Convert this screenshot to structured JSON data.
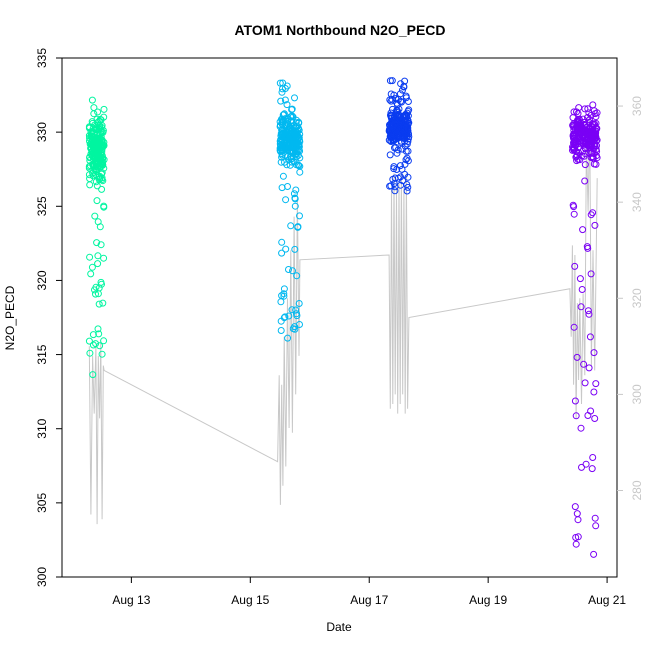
{
  "chart_data": {
    "type": "scatter",
    "title": "ATOM1 Northbound N2O_PECD",
    "xlabel": "Date",
    "ylabel": "N2O_PECD",
    "xlim": [
      "2016-08-11T20:00",
      "2016-08-21T04:00"
    ],
    "ylim": [
      300,
      335
    ],
    "x_ticks": [
      "2016-08-13",
      "2016-08-15",
      "2016-08-17",
      "2016-08-19",
      "2016-08-21"
    ],
    "x_tick_labels": [
      "Aug 13",
      "Aug 15",
      "Aug 17",
      "Aug 19",
      "Aug 21"
    ],
    "y_ticks": [
      300,
      305,
      310,
      315,
      320,
      325,
      330,
      335
    ],
    "y_tick_labels": [
      "300",
      "305",
      "310",
      "315",
      "320",
      "325",
      "330",
      "335"
    ],
    "y2lim": [
      262,
      370
    ],
    "y2_ticks": [
      280,
      300,
      320,
      340,
      360
    ],
    "y2_tick_labels": [
      "280",
      "300",
      "320",
      "340",
      "360"
    ],
    "grid": false,
    "colors": {
      "series": [
        "#00f5a0",
        "#00b8f0",
        "#0a3cf0",
        "#7a00f5"
      ],
      "secondary_line": "#c8c8c8",
      "axis": "#000000",
      "right_axis": "#c8c8c8"
    },
    "series": [
      {
        "x_range": [
          "2016-08-12T07:00",
          "2016-08-12T13:00"
        ],
        "dense_y": [
          326,
          331.5
        ],
        "sparse_y": [
          313.5,
          333
        ]
      },
      {
        "x_range": [
          "2016-08-15T12:00",
          "2016-08-15T20:00"
        ],
        "dense_y": [
          327,
          332
        ],
        "sparse_y": [
          316,
          333.5
        ]
      },
      {
        "x_range": [
          "2016-08-17T08:00",
          "2016-08-17T16:00"
        ],
        "dense_y": [
          328.5,
          332
        ],
        "sparse_y": [
          326,
          333.5
        ]
      },
      {
        "x_range": [
          "2016-08-20T10:00",
          "2016-08-20T20:00"
        ],
        "dense_y": [
          327.5,
          332
        ],
        "sparse_y": [
          300.8,
          333.5
        ]
      }
    ],
    "secondary_series": {
      "axis": "right",
      "points": [
        [
          "2016-08-12T07:00",
          310
        ],
        [
          "2016-08-12T07:40",
          275
        ],
        [
          "2016-08-12T08:20",
          308
        ],
        [
          "2016-08-12T09:00",
          296
        ],
        [
          "2016-08-12T09:40",
          310
        ],
        [
          "2016-08-12T10:10",
          273
        ],
        [
          "2016-08-12T10:40",
          308
        ],
        [
          "2016-08-12T11:10",
          295
        ],
        [
          "2016-08-12T11:40",
          311
        ],
        [
          "2016-08-12T12:10",
          274
        ],
        [
          "2016-08-12T12:40",
          306
        ],
        [
          "2016-08-12T13:00",
          305
        ],
        [
          "2016-08-15T11:00",
          286
        ],
        [
          "2016-08-15T11:40",
          304
        ],
        [
          "2016-08-15T12:10",
          277
        ],
        [
          "2016-08-15T12:40",
          302
        ],
        [
          "2016-08-15T13:10",
          281
        ],
        [
          "2016-08-15T13:40",
          312
        ],
        [
          "2016-08-15T14:20",
          285
        ],
        [
          "2016-08-15T15:00",
          320
        ],
        [
          "2016-08-15T15:40",
          293
        ],
        [
          "2016-08-15T16:20",
          330
        ],
        [
          "2016-08-15T17:00",
          292
        ],
        [
          "2016-08-15T17:40",
          337
        ],
        [
          "2016-08-15T18:20",
          300
        ],
        [
          "2016-08-15T19:00",
          341
        ],
        [
          "2016-08-15T19:40",
          308
        ],
        [
          "2016-08-15T20:00",
          328
        ],
        [
          "2016-08-17T08:00",
          329
        ],
        [
          "2016-08-17T08:30",
          297
        ],
        [
          "2016-08-17T09:00",
          343
        ],
        [
          "2016-08-17T09:30",
          298
        ],
        [
          "2016-08-17T10:00",
          346
        ],
        [
          "2016-08-17T10:30",
          300
        ],
        [
          "2016-08-17T11:00",
          343
        ],
        [
          "2016-08-17T11:30",
          296
        ],
        [
          "2016-08-17T12:00",
          344
        ],
        [
          "2016-08-17T12:30",
          298
        ],
        [
          "2016-08-17T13:00",
          346
        ],
        [
          "2016-08-17T13:30",
          300
        ],
        [
          "2016-08-17T14:00",
          343
        ],
        [
          "2016-08-17T14:30",
          296
        ],
        [
          "2016-08-17T15:00",
          346
        ],
        [
          "2016-08-17T15:30",
          297
        ],
        [
          "2016-08-17T16:00",
          316
        ],
        [
          "2016-08-20T09:00",
          322
        ],
        [
          "2016-08-20T09:30",
          312
        ],
        [
          "2016-08-20T10:00",
          331
        ],
        [
          "2016-08-20T10:30",
          302
        ],
        [
          "2016-08-20T11:00",
          329
        ],
        [
          "2016-08-20T11:30",
          295
        ],
        [
          "2016-08-20T12:00",
          319
        ],
        [
          "2016-08-20T12:30",
          303
        ],
        [
          "2016-08-20T13:00",
          320
        ],
        [
          "2016-08-20T13:40",
          298
        ],
        [
          "2016-08-20T14:20",
          321
        ],
        [
          "2016-08-20T15:00",
          304
        ],
        [
          "2016-08-20T15:40",
          353
        ],
        [
          "2016-08-20T16:20",
          338
        ],
        [
          "2016-08-20T17:00",
          357
        ],
        [
          "2016-08-20T17:40",
          306
        ],
        [
          "2016-08-20T18:20",
          330
        ],
        [
          "2016-08-20T19:00",
          305
        ],
        [
          "2016-08-20T20:00",
          345
        ]
      ]
    }
  }
}
